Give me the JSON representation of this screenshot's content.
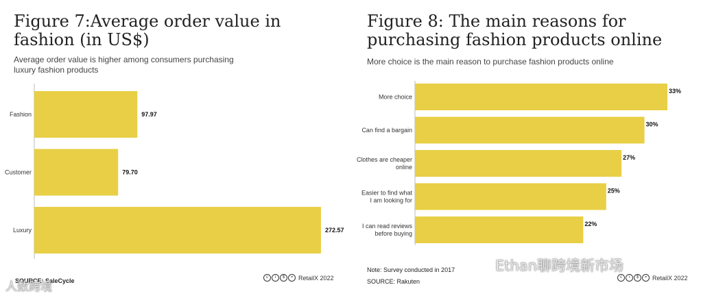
{
  "left": {
    "title": "Figure 7:Average order value in fashion (in US$)",
    "subtitle": "Average order value is higher among consumers purchasing luxury fashion products",
    "source": "SOURCE: SaleCycle",
    "brand": "RetailX 2022"
  },
  "right": {
    "title": "Figure 8: The main reasons for purchasing fashion products online",
    "subtitle": "More choice is the main reason to purchase fashion products online",
    "note": "Note: Survey conducted in 2017",
    "source": "SOURCE: Rakuten",
    "brand": "RetailX 2022"
  },
  "colors": {
    "bar": "#e8cf45",
    "axis": "#bbbbbb"
  },
  "watermarks": {
    "left": "人数跨境",
    "right": "Ethan聊跨境新市场"
  },
  "chart_data": [
    {
      "type": "bar",
      "orientation": "horizontal",
      "categories": [
        "Fashion",
        "Customer",
        "Luxury"
      ],
      "values": [
        97.97,
        79.7,
        272.57
      ],
      "value_labels": [
        "97.97",
        "79.70",
        "272.57"
      ],
      "title": "Figure 7:Average order value in fashion (in US$)",
      "xlim": [
        0,
        300
      ]
    },
    {
      "type": "bar",
      "orientation": "horizontal",
      "categories": [
        "More choice",
        "Can find a bargain",
        "Clothes are cheaper online",
        "Easier to find what I am looking for",
        "I can read reviews before buying"
      ],
      "category_lines": [
        [
          "More choice"
        ],
        [
          "Can find a bargain"
        ],
        [
          "Clothes are cheaper",
          "online"
        ],
        [
          "Easier to find what",
          "I am looking for"
        ],
        [
          "I can read reviews",
          "before buying"
        ]
      ],
      "values": [
        33,
        30,
        27,
        25,
        22
      ],
      "value_labels": [
        "33%",
        "30%",
        "27%",
        "25%",
        "22%"
      ],
      "title": "Figure 8: The main reasons for purchasing fashion products online",
      "xlim": [
        0,
        33
      ]
    }
  ]
}
